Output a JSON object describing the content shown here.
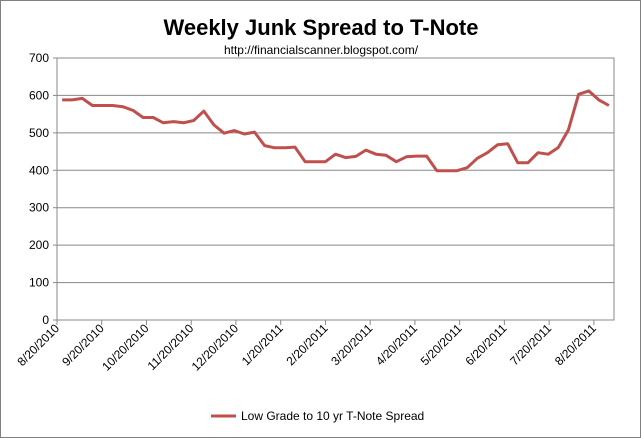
{
  "chart_data": {
    "type": "line",
    "title": "Weekly Junk Spread to T-Note",
    "subtitle": "http://financialscanner.blogspot.com/",
    "xlabel": "",
    "ylabel": "",
    "ylim": [
      0,
      700
    ],
    "y_ticks": [
      "0",
      "100",
      "200",
      "300",
      "400",
      "500",
      "600",
      "700"
    ],
    "x_ticks": [
      "8/20/2010",
      "9/20/2010",
      "10/20/2010",
      "11/20/2010",
      "12/20/2010",
      "1/20/2011",
      "2/20/2011",
      "3/20/2011",
      "4/20/2011",
      "5/20/2011",
      "6/20/2011",
      "7/20/2011",
      "8/20/2011"
    ],
    "grid": "horizontal",
    "legend_position": "bottom",
    "line_color": "#C0504D",
    "series": [
      {
        "name": "Low Grade to 10 yr T-Note Spread",
        "values": [
          588,
          588,
          592,
          573,
          573,
          573,
          570,
          560,
          541,
          541,
          527,
          530,
          527,
          533,
          558,
          521,
          499,
          506,
          497,
          502,
          466,
          460,
          460,
          462,
          423,
          423,
          423,
          443,
          434,
          437,
          454,
          443,
          440,
          423,
          436,
          438,
          438,
          399,
          399,
          399,
          407,
          432,
          447,
          468,
          471,
          420,
          420,
          447,
          443,
          461,
          508,
          603,
          612,
          588,
          573
        ]
      }
    ]
  }
}
